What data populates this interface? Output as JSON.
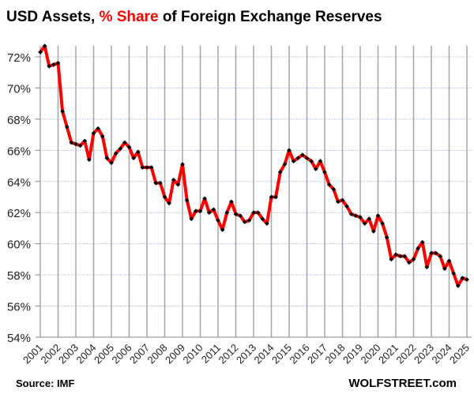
{
  "chart_data": {
    "type": "line",
    "title_parts": [
      {
        "text": "USD Assets, ",
        "color": "#000000"
      },
      {
        "text": "% Share",
        "color": "#ff0000"
      },
      {
        "text": " of Foreign Exchange Reserves",
        "color": "#000000"
      }
    ],
    "source": "Source: IMF",
    "brand": "WOLFSTREET.com",
    "ylim": [
      54,
      72
    ],
    "yticks": [
      54,
      56,
      58,
      60,
      62,
      64,
      66,
      68,
      70,
      72
    ],
    "ytick_format": "%",
    "xlim": [
      2001,
      2025
    ],
    "xticks": [
      "2001",
      "2002",
      "2003",
      "2004",
      "2005",
      "2006",
      "2007",
      "2008",
      "2009",
      "2010",
      "2011",
      "2012",
      "2013",
      "2014",
      "2015",
      "2016",
      "2017",
      "2018",
      "2019",
      "2020",
      "2021",
      "2022",
      "2023",
      "2024",
      "2025"
    ],
    "frequency": "quarterly",
    "start": "2001",
    "grid": true,
    "line_color": "#ff0000",
    "marker_color": "#000000",
    "values": [
      72.3,
      72.7,
      71.4,
      71.5,
      71.6,
      68.5,
      67.5,
      66.5,
      66.4,
      66.3,
      66.6,
      65.4,
      67.1,
      67.4,
      66.9,
      65.5,
      65.2,
      65.8,
      66.1,
      66.5,
      66.2,
      65.5,
      65.9,
      64.9,
      64.9,
      64.9,
      63.9,
      63.9,
      63.0,
      62.6,
      64.1,
      63.8,
      65.1,
      62.8,
      61.6,
      62.1,
      62.1,
      62.9,
      62.0,
      62.2,
      61.5,
      60.9,
      62.0,
      62.7,
      61.9,
      61.8,
      61.4,
      61.5,
      62.0,
      62.0,
      61.6,
      61.3,
      63.0,
      63.0,
      64.6,
      65.1,
      66.0,
      65.3,
      65.5,
      65.7,
      65.5,
      65.3,
      64.8,
      65.3,
      64.6,
      63.8,
      63.5,
      62.7,
      62.8,
      62.4,
      61.9,
      61.8,
      61.7,
      61.3,
      61.6,
      60.8,
      61.8,
      61.3,
      60.4,
      59.0,
      59.3,
      59.2,
      59.2,
      58.8,
      59.0,
      59.7,
      60.1,
      58.5,
      59.4,
      59.4,
      59.2,
      58.4,
      58.9,
      58.1,
      57.3,
      57.8,
      57.7
    ]
  }
}
